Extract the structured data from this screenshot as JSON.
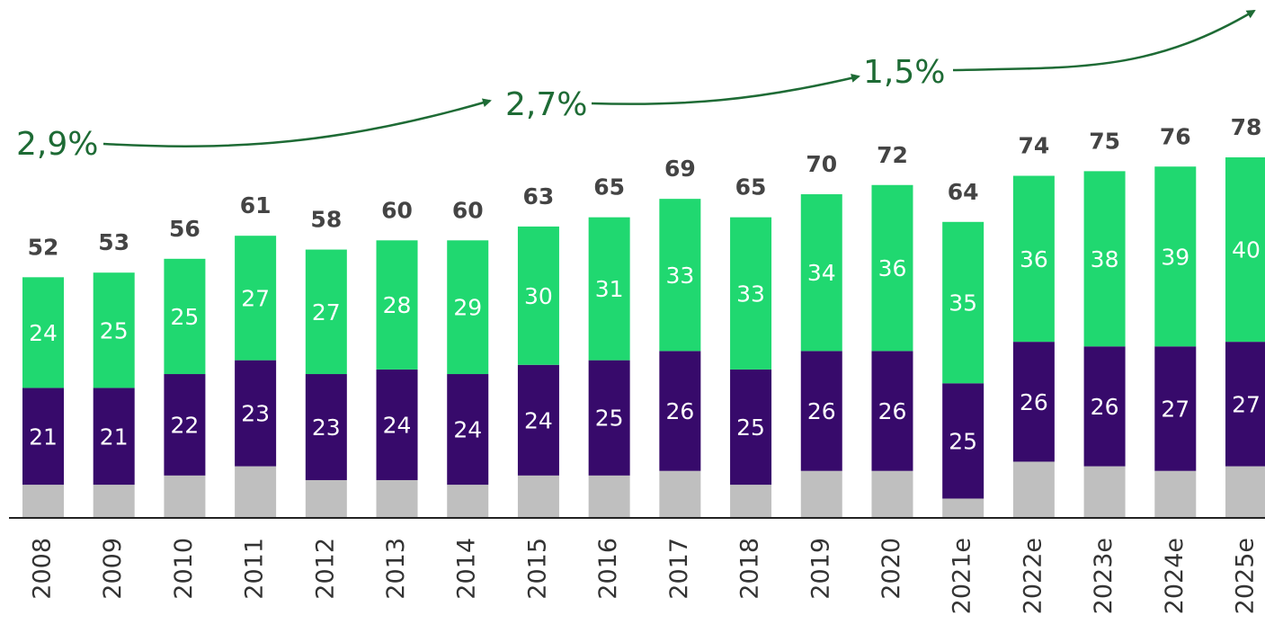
{
  "chart_data": {
    "type": "stacked_bar",
    "categories": [
      "2008",
      "2009",
      "2010",
      "2011",
      "2012",
      "2013",
      "2014",
      "2015",
      "2016",
      "2017",
      "2018",
      "2019",
      "2020",
      "2021e",
      "2022e",
      "2023e",
      "2024e",
      "2025e"
    ],
    "series": [
      {
        "color": "#bfbfbf",
        "values": [
          7,
          7,
          9,
          11,
          8,
          8,
          7,
          9,
          9,
          10,
          7,
          10,
          10,
          4,
          12,
          11,
          10,
          11
        ]
      },
      {
        "color": "#370a6b",
        "values": [
          21,
          21,
          22,
          23,
          23,
          24,
          24,
          24,
          25,
          26,
          25,
          26,
          26,
          25,
          26,
          26,
          27,
          27
        ]
      },
      {
        "color": "#20d870",
        "values": [
          24,
          25,
          25,
          27,
          27,
          28,
          29,
          30,
          31,
          33,
          33,
          34,
          36,
          35,
          36,
          38,
          39,
          40
        ]
      }
    ],
    "totals": [
      52,
      53,
      56,
      61,
      58,
      60,
      60,
      63,
      65,
      69,
      65,
      70,
      72,
      64,
      74,
      75,
      76,
      78
    ],
    "annotations": [
      "2,9%",
      "2,7%",
      "1,5%"
    ],
    "annotation_color": "#1e6b35"
  }
}
